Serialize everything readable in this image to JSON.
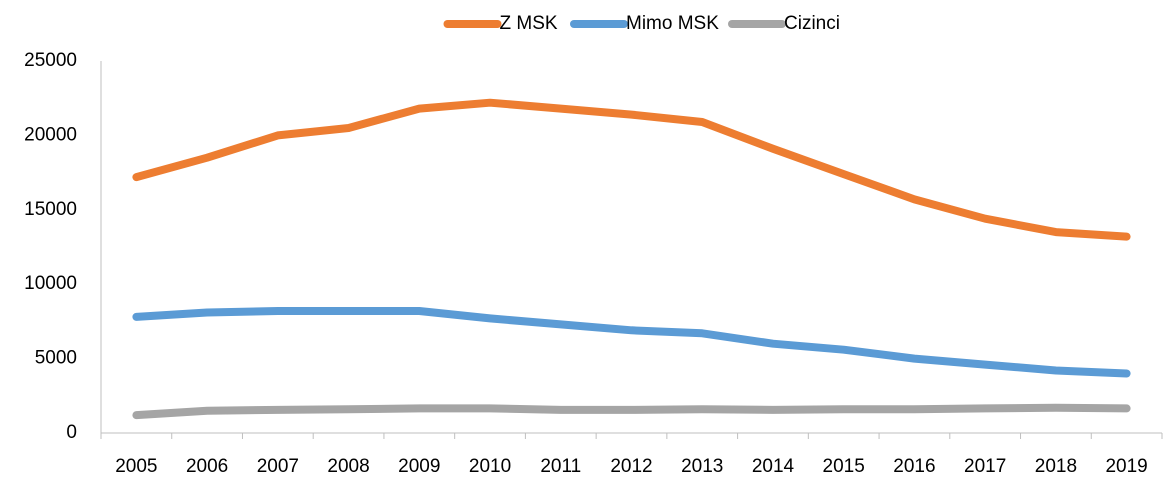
{
  "chart_data": {
    "type": "line",
    "categories": [
      "2005",
      "2006",
      "2007",
      "2008",
      "2009",
      "2010",
      "2011",
      "2012",
      "2013",
      "2014",
      "2015",
      "2016",
      "2017",
      "2018",
      "2019"
    ],
    "series": [
      {
        "name": "Z MSK",
        "color": "#ed7d31",
        "values": [
          17200,
          18500,
          20000,
          20500,
          21800,
          22200,
          21800,
          21400,
          20900,
          19100,
          17400,
          15700,
          14400,
          13500,
          13200
        ]
      },
      {
        "name": "Mimo MSK",
        "color": "#5b9bd5",
        "values": [
          7800,
          8100,
          8200,
          8200,
          8200,
          7700,
          7300,
          6900,
          6700,
          6000,
          5600,
          5000,
          4600,
          4200,
          4000
        ]
      },
      {
        "name": "Cizinci",
        "color": "#a5a5a5",
        "values": [
          1200,
          1500,
          1550,
          1600,
          1650,
          1650,
          1550,
          1550,
          1600,
          1550,
          1600,
          1600,
          1650,
          1700,
          1650
        ]
      }
    ],
    "ylim": [
      0,
      25000
    ],
    "yticks": [
      0,
      5000,
      10000,
      15000,
      20000,
      25000
    ],
    "grid": false,
    "legend": "top"
  }
}
